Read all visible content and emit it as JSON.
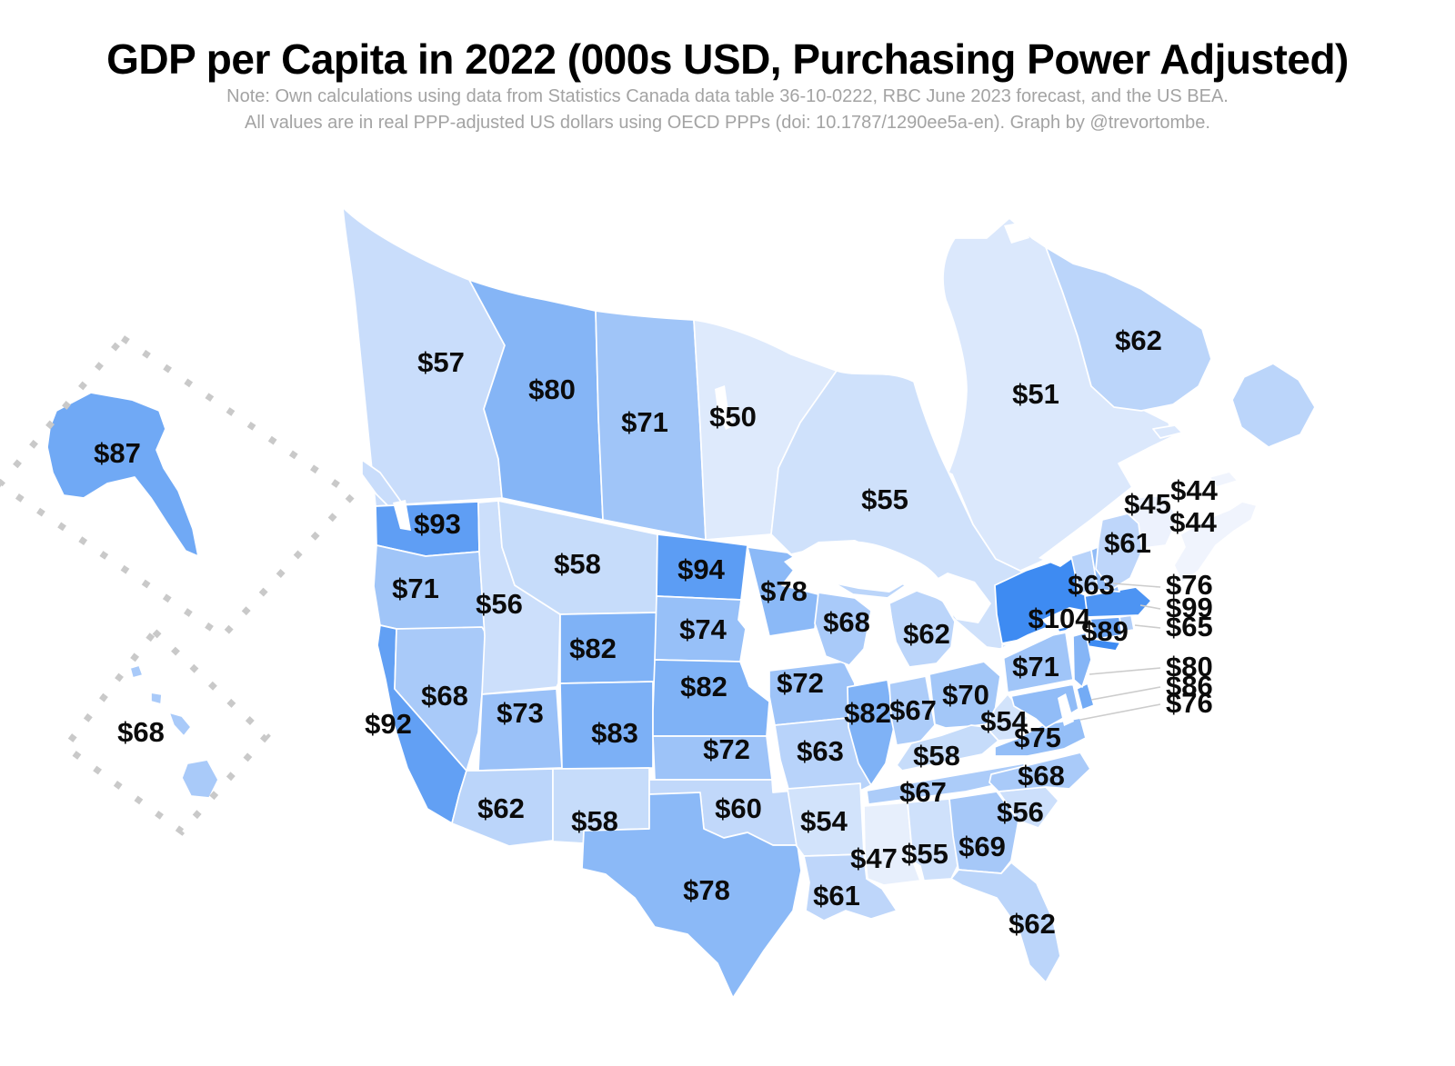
{
  "header": {
    "title": "GDP per Capita in 2022 (000s USD, Purchasing Power Adjusted)",
    "note_line1": "Note: Own calculations using data from Statistics Canada data table 36-10-0222, RBC June 2023 forecast, and the US BEA.",
    "note_line2": "All values are in real PPP-adjusted US dollars using OECD PPPs (doi: 10.1787/1290ee5a-en). Graph by @trevortombe."
  },
  "colors": {
    "background": "#ffffff",
    "border": "#ffffff",
    "label": "#0b0b0b",
    "note": "#a3a3a3",
    "leader_line": "#cccccc",
    "inset_dots": "#c9c9c9"
  },
  "chart_data": {
    "type": "choropleth",
    "title": "GDP per Capita in 2022 (000s USD, Purchasing Power Adjusted)",
    "unit": "thousands of USD, purchasing power adjusted",
    "legend": "none (values labeled directly on map)",
    "color_scale": {
      "min_value": 44,
      "max_value": 104,
      "min_color": "#F0F4FD",
      "max_color": "#3E8BF2"
    },
    "regions": [
      {
        "code": "BC",
        "name": "British Columbia",
        "country": "Canada",
        "value": 57,
        "label": "$57"
      },
      {
        "code": "AB",
        "name": "Alberta",
        "country": "Canada",
        "value": 80,
        "label": "$80"
      },
      {
        "code": "SK",
        "name": "Saskatchewan",
        "country": "Canada",
        "value": 71,
        "label": "$71"
      },
      {
        "code": "MB",
        "name": "Manitoba",
        "country": "Canada",
        "value": 50,
        "label": "$50"
      },
      {
        "code": "ON",
        "name": "Ontario",
        "country": "Canada",
        "value": 55,
        "label": "$55"
      },
      {
        "code": "QC",
        "name": "Quebec",
        "country": "Canada",
        "value": 51,
        "label": "$51"
      },
      {
        "code": "NL",
        "name": "Newfoundland and Labrador",
        "country": "Canada",
        "value": 62,
        "label": "$62"
      },
      {
        "code": "NB",
        "name": "New Brunswick",
        "country": "Canada",
        "value": 45,
        "label": "$45"
      },
      {
        "code": "PE",
        "name": "Prince Edward Island",
        "country": "Canada",
        "value": 44,
        "label": "$44"
      },
      {
        "code": "NS",
        "name": "Nova Scotia",
        "country": "Canada",
        "value": 44,
        "label": "$44"
      },
      {
        "code": "AK",
        "name": "Alaska",
        "country": "United States",
        "value": 87,
        "label": "$87"
      },
      {
        "code": "HI",
        "name": "Hawaii",
        "country": "United States",
        "value": 68,
        "label": "$68"
      },
      {
        "code": "WA",
        "name": "Washington",
        "country": "United States",
        "value": 93,
        "label": "$93"
      },
      {
        "code": "OR",
        "name": "Oregon",
        "country": "United States",
        "value": 71,
        "label": "$71"
      },
      {
        "code": "CA",
        "name": "California",
        "country": "United States",
        "value": 92,
        "label": "$92"
      },
      {
        "code": "NV",
        "name": "Nevada",
        "country": "United States",
        "value": 68,
        "label": "$68"
      },
      {
        "code": "ID",
        "name": "Idaho",
        "country": "United States",
        "value": 56,
        "label": "$56"
      },
      {
        "code": "MT",
        "name": "Montana",
        "country": "United States",
        "value": 58,
        "label": "$58"
      },
      {
        "code": "WY",
        "name": "Wyoming",
        "country": "United States",
        "value": 82,
        "label": "$82"
      },
      {
        "code": "UT",
        "name": "Utah",
        "country": "United States",
        "value": 73,
        "label": "$73"
      },
      {
        "code": "CO",
        "name": "Colorado",
        "country": "United States",
        "value": 83,
        "label": "$83"
      },
      {
        "code": "AZ",
        "name": "Arizona",
        "country": "United States",
        "value": 62,
        "label": "$62"
      },
      {
        "code": "NM",
        "name": "New Mexico",
        "country": "United States",
        "value": 58,
        "label": "$58"
      },
      {
        "code": "ND",
        "name": "North Dakota",
        "country": "United States",
        "value": 94,
        "label": "$94"
      },
      {
        "code": "SD",
        "name": "South Dakota",
        "country": "United States",
        "value": 74,
        "label": "$74"
      },
      {
        "code": "NE",
        "name": "Nebraska",
        "country": "United States",
        "value": 82,
        "label": "$82"
      },
      {
        "code": "KS",
        "name": "Kansas",
        "country": "United States",
        "value": 72,
        "label": "$72"
      },
      {
        "code": "OK",
        "name": "Oklahoma",
        "country": "United States",
        "value": 60,
        "label": "$60"
      },
      {
        "code": "TX",
        "name": "Texas",
        "country": "United States",
        "value": 78,
        "label": "$78"
      },
      {
        "code": "MN",
        "name": "Minnesota",
        "country": "United States",
        "value": 78,
        "label": "$78"
      },
      {
        "code": "IA",
        "name": "Iowa",
        "country": "United States",
        "value": 72,
        "label": "$72"
      },
      {
        "code": "MO",
        "name": "Missouri",
        "country": "United States",
        "value": 63,
        "label": "$63"
      },
      {
        "code": "AR",
        "name": "Arkansas",
        "country": "United States",
        "value": 54,
        "label": "$54"
      },
      {
        "code": "LA",
        "name": "Louisiana",
        "country": "United States",
        "value": 61,
        "label": "$61"
      },
      {
        "code": "WI",
        "name": "Wisconsin",
        "country": "United States",
        "value": 68,
        "label": "$68"
      },
      {
        "code": "IL",
        "name": "Illinois",
        "country": "United States",
        "value": 82,
        "label": "$82"
      },
      {
        "code": "IN",
        "name": "Indiana",
        "country": "United States",
        "value": 67,
        "label": "$67"
      },
      {
        "code": "MI",
        "name": "Michigan",
        "country": "United States",
        "value": 62,
        "label": "$62"
      },
      {
        "code": "OH",
        "name": "Ohio",
        "country": "United States",
        "value": 70,
        "label": "$70"
      },
      {
        "code": "KY",
        "name": "Kentucky",
        "country": "United States",
        "value": 58,
        "label": "$58"
      },
      {
        "code": "TN",
        "name": "Tennessee",
        "country": "United States",
        "value": 67,
        "label": "$67"
      },
      {
        "code": "MS",
        "name": "Mississippi",
        "country": "United States",
        "value": 47,
        "label": "$47"
      },
      {
        "code": "AL",
        "name": "Alabama",
        "country": "United States",
        "value": 55,
        "label": "$55"
      },
      {
        "code": "GA",
        "name": "Georgia",
        "country": "United States",
        "value": 69,
        "label": "$69"
      },
      {
        "code": "FL",
        "name": "Florida",
        "country": "United States",
        "value": 62,
        "label": "$62"
      },
      {
        "code": "SC",
        "name": "South Carolina",
        "country": "United States",
        "value": 56,
        "label": "$56"
      },
      {
        "code": "NC",
        "name": "North Carolina",
        "country": "United States",
        "value": 68,
        "label": "$68"
      },
      {
        "code": "VA",
        "name": "Virginia",
        "country": "United States",
        "value": 75,
        "label": "$75"
      },
      {
        "code": "WV",
        "name": "West Virginia",
        "country": "United States",
        "value": 54,
        "label": "$54"
      },
      {
        "code": "MD",
        "name": "Maryland",
        "country": "United States",
        "value": 76,
        "label": "$76"
      },
      {
        "code": "DE",
        "name": "Delaware",
        "country": "United States",
        "value": 86,
        "label": "$86"
      },
      {
        "code": "PA",
        "name": "Pennsylvania",
        "country": "United States",
        "value": 71,
        "label": "$71"
      },
      {
        "code": "NJ",
        "name": "New Jersey",
        "country": "United States",
        "value": 80,
        "label": "$80"
      },
      {
        "code": "NY",
        "name": "New York",
        "country": "United States",
        "value": 104,
        "label": "$104"
      },
      {
        "code": "CT",
        "name": "Connecticut",
        "country": "United States",
        "value": 89,
        "label": "$89"
      },
      {
        "code": "RI",
        "name": "Rhode Island",
        "country": "United States",
        "value": 65,
        "label": "$65"
      },
      {
        "code": "MA",
        "name": "Massachusetts",
        "country": "United States",
        "value": 99,
        "label": "$99"
      },
      {
        "code": "VT",
        "name": "Vermont",
        "country": "United States",
        "value": 63,
        "label": "$63"
      },
      {
        "code": "NH",
        "name": "New Hampshire",
        "country": "United States",
        "value": 76,
        "label": "$76"
      },
      {
        "code": "ME",
        "name": "Maine",
        "country": "United States",
        "value": 61,
        "label": "$61"
      }
    ]
  }
}
